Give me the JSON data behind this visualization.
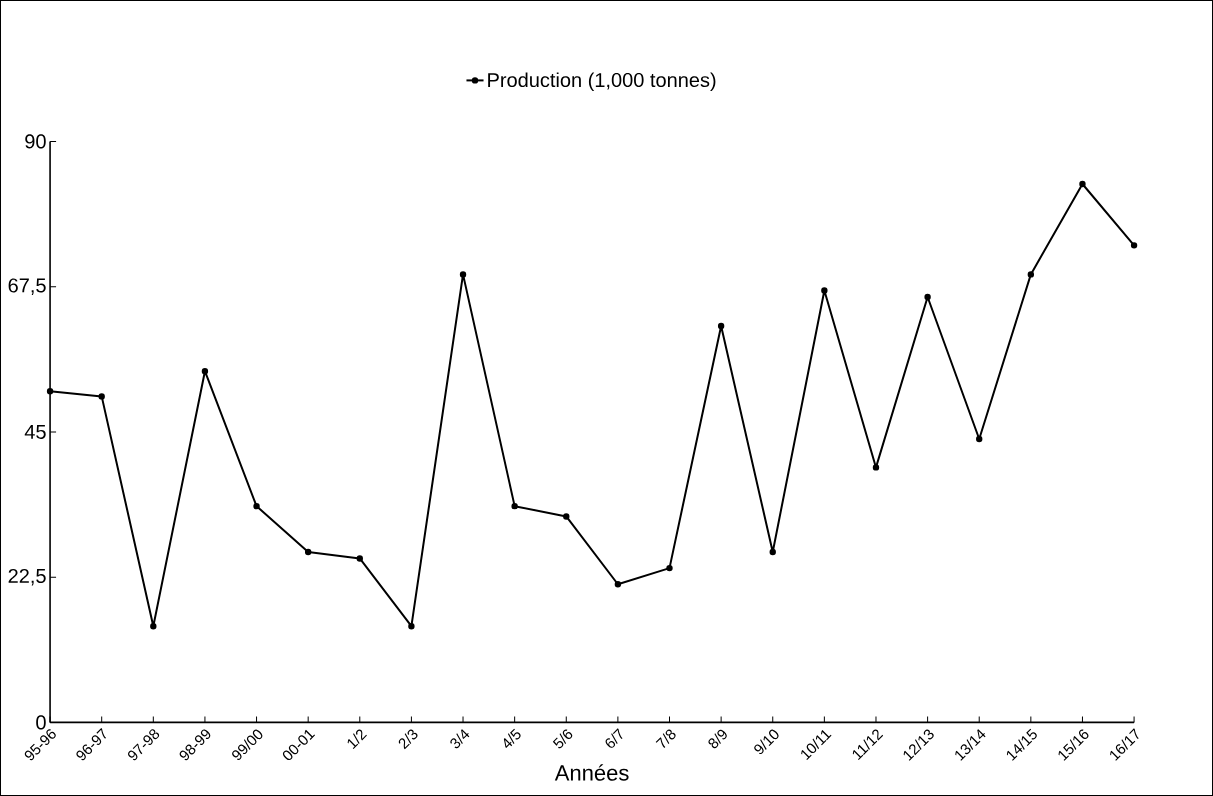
{
  "chart_data": {
    "type": "line",
    "xlabel": "Années",
    "categories": [
      "95-96",
      "96-97",
      "97-98",
      "98-99",
      "99/00",
      "00-01",
      "1/2",
      "2/3",
      "3/4",
      "4/5",
      "5/6",
      "6/7",
      "7/8",
      "8/9",
      "9/10",
      "10/11",
      "11/12",
      "12/13",
      "13/14",
      "14/15",
      "15/16",
      "16/17"
    ],
    "series": [
      {
        "name": "Production (1,000 tonnes)",
        "color": "#000000",
        "values": [
          51.3,
          50.5,
          14.9,
          54.4,
          33.5,
          26.4,
          25.4,
          14.9,
          69.4,
          33.5,
          31.9,
          21.4,
          23.9,
          61.4,
          26.4,
          66.9,
          39.5,
          65.9,
          43.9,
          69.4,
          83.4,
          73.9
        ]
      }
    ],
    "ylim": [
      0,
      90
    ],
    "yticks": [
      0,
      {
        "value": 22.5,
        "label": "22,5"
      },
      45,
      {
        "value": 67.5,
        "label": "67,5"
      },
      90
    ],
    "legend": "top",
    "marker": "circle",
    "line_style": "solid"
  }
}
